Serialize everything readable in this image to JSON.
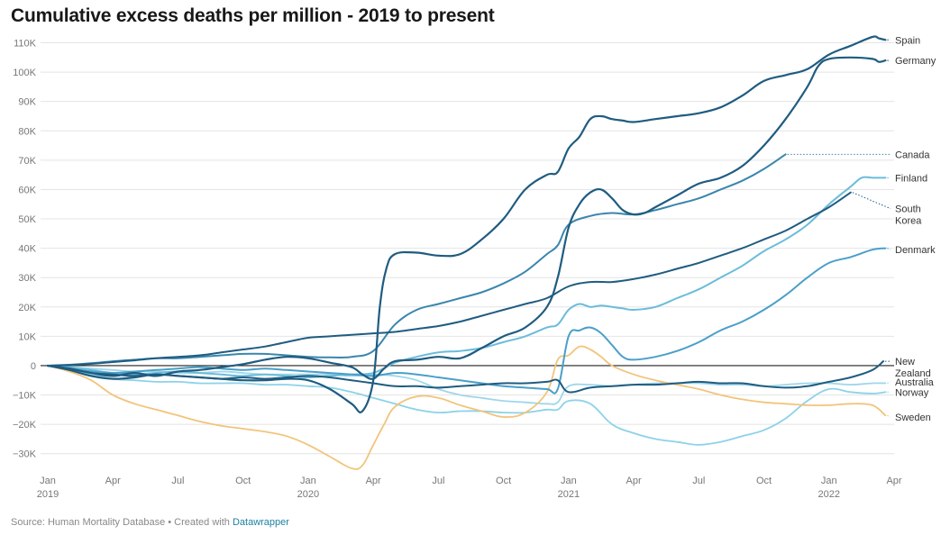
{
  "title": "Cumulative excess deaths per million - 2019 to present",
  "source": {
    "prefix": "Source: Human Mortality Database • Created with ",
    "link": "Datawrapper"
  },
  "chart_data": {
    "type": "line",
    "title": "Cumulative excess deaths per million - 2019 to present",
    "xlabel": "",
    "ylabel": "",
    "ylim": [
      -35000,
      112000
    ],
    "xlim": [
      0,
      39
    ],
    "x_unit": "months since Jan 2019",
    "y_ticks": [
      110000,
      100000,
      90000,
      80000,
      70000,
      60000,
      50000,
      40000,
      30000,
      20000,
      10000,
      0,
      -10000,
      -20000,
      -30000
    ],
    "y_tick_labels": [
      "110K",
      "100K",
      "90K",
      "80K",
      "70K",
      "60K",
      "50K",
      "40K",
      "30K",
      "20K",
      "10K",
      "0",
      "−10K",
      "−20K",
      "−30K"
    ],
    "x_ticks": [
      {
        "x": 0,
        "label": "Jan",
        "year": "2019"
      },
      {
        "x": 3,
        "label": "Apr"
      },
      {
        "x": 6,
        "label": "Jul"
      },
      {
        "x": 9,
        "label": "Oct"
      },
      {
        "x": 12,
        "label": "Jan",
        "year": "2020"
      },
      {
        "x": 15,
        "label": "Apr"
      },
      {
        "x": 18,
        "label": "Jul"
      },
      {
        "x": 21,
        "label": "Oct"
      },
      {
        "x": 24,
        "label": "Jan",
        "year": "2021"
      },
      {
        "x": 27,
        "label": "Apr"
      },
      {
        "x": 30,
        "label": "Jul"
      },
      {
        "x": 33,
        "label": "Oct"
      },
      {
        "x": 36,
        "label": "Jan",
        "year": "2022"
      },
      {
        "x": 39,
        "label": "Apr"
      }
    ],
    "grid": true,
    "series": [
      {
        "name": "Spain",
        "label_lines": [
          "Spain"
        ],
        "color": "#1f5c80",
        "width": 2.2,
        "label_y": 111000,
        "x": [
          0,
          1,
          2,
          3,
          4,
          5,
          6,
          7,
          8,
          9,
          10,
          11,
          12,
          13,
          14,
          14.5,
          15,
          15.3,
          15.6,
          16,
          17,
          18,
          19,
          20,
          21,
          22,
          23,
          23.5,
          24,
          24.5,
          25,
          25.5,
          26,
          26.5,
          27,
          28,
          29,
          30,
          31,
          32,
          33,
          34,
          35,
          36,
          37,
          38,
          38.3,
          38.6
        ],
        "y": [
          0,
          -1500,
          -3500,
          -4500,
          -4000,
          -3000,
          -3500,
          -4000,
          -4500,
          -5000,
          -5000,
          -4500,
          -5000,
          -8000,
          -13000,
          -15500,
          -5000,
          20000,
          33000,
          38000,
          38500,
          37500,
          38000,
          43000,
          50000,
          60000,
          65000,
          66000,
          74000,
          78000,
          84000,
          85000,
          84000,
          83500,
          83000,
          84000,
          85000,
          86000,
          88000,
          92000,
          97000,
          99000,
          101000,
          106000,
          109000,
          112000,
          111500,
          111000
        ]
      },
      {
        "name": "Germany",
        "label_lines": [
          "Germany"
        ],
        "color": "#1f5c80",
        "width": 2.2,
        "label_y": 104000,
        "x": [
          0,
          1,
          2,
          3,
          4,
          5,
          6,
          7,
          8,
          9,
          10,
          11,
          12,
          13,
          14,
          14.5,
          15,
          15.5,
          16,
          17,
          18,
          19,
          20,
          21,
          22,
          23,
          23.5,
          24,
          24.5,
          25,
          25.5,
          26,
          26.5,
          27,
          27.5,
          28,
          29,
          30,
          31,
          32,
          33,
          34,
          35,
          35.5,
          36,
          37,
          38,
          38.3,
          38.6
        ],
        "y": [
          0,
          -1000,
          -2500,
          -3500,
          -2500,
          -3500,
          -2000,
          -1500,
          -500,
          500,
          2000,
          3000,
          2500,
          1000,
          -500,
          -3000,
          -4500,
          -1000,
          1500,
          2000,
          3000,
          2500,
          6000,
          10000,
          13000,
          20000,
          30000,
          47000,
          55000,
          59000,
          60000,
          57000,
          53000,
          51500,
          52000,
          54000,
          58000,
          62000,
          64000,
          68000,
          75000,
          84000,
          95000,
          102000,
          104500,
          105000,
          104500,
          103500,
          104000
        ]
      },
      {
        "name": "Canada",
        "label_lines": [
          "Canada"
        ],
        "color": "#3a86ad",
        "width": 2.0,
        "label_y": 72000,
        "x": [
          0,
          1,
          2,
          3,
          4,
          5,
          6,
          7,
          8,
          9,
          10,
          11,
          12,
          13,
          14,
          15,
          16,
          17,
          18,
          19,
          20,
          21,
          22,
          23,
          23.5,
          24,
          25,
          26,
          27,
          28,
          29,
          30,
          31,
          32,
          33,
          34
        ],
        "y": [
          0,
          300,
          800,
          1500,
          2000,
          2500,
          2500,
          3000,
          3500,
          4000,
          4000,
          3500,
          3000,
          2800,
          3000,
          5000,
          14000,
          19000,
          21000,
          23000,
          25000,
          28000,
          32000,
          38000,
          41000,
          48000,
          51000,
          52000,
          51500,
          53000,
          55000,
          57000,
          60000,
          63000,
          67000,
          72000
        ]
      },
      {
        "name": "Finland",
        "label_lines": [
          "Finland"
        ],
        "color": "#6bbcdb",
        "width": 2.0,
        "label_y": 64000,
        "x": [
          0,
          1,
          2,
          3,
          4,
          5,
          6,
          7,
          8,
          9,
          10,
          11,
          12,
          13,
          14,
          15,
          16,
          17,
          18,
          19,
          20,
          21,
          22,
          23,
          23.5,
          24,
          24.5,
          25,
          25.5,
          26,
          26.5,
          27,
          28,
          29,
          30,
          31,
          32,
          33,
          34,
          35,
          36,
          37,
          37.5,
          38,
          38.3,
          38.6
        ],
        "y": [
          0,
          -500,
          -1500,
          -2500,
          -3000,
          -2500,
          -2000,
          -2500,
          -3000,
          -3500,
          -3000,
          -3500,
          -4000,
          -3500,
          -3000,
          -2500,
          1000,
          3000,
          4500,
          5000,
          6000,
          8000,
          10000,
          13000,
          14000,
          19000,
          21000,
          20000,
          20500,
          20000,
          19500,
          19000,
          20000,
          23000,
          26000,
          30000,
          34000,
          39000,
          43000,
          48000,
          55000,
          61000,
          64000,
          64000,
          64000,
          64000
        ]
      },
      {
        "name": "South Korea",
        "label_lines": [
          "South",
          "Korea"
        ],
        "color": "#1f5c80",
        "width": 2.0,
        "label_y": 53500,
        "x": [
          0,
          1,
          2,
          3,
          4,
          5,
          6,
          7,
          8,
          9,
          10,
          11,
          12,
          13,
          14,
          15,
          16,
          17,
          18,
          19,
          20,
          21,
          22,
          23,
          24,
          25,
          26,
          27,
          28,
          29,
          30,
          31,
          32,
          33,
          34,
          35,
          36,
          37
        ],
        "y": [
          0,
          200,
          600,
          1200,
          1800,
          2500,
          3000,
          3500,
          4500,
          5500,
          6500,
          8000,
          9500,
          10000,
          10500,
          11000,
          11500,
          12500,
          13500,
          15000,
          17000,
          19000,
          21000,
          23000,
          27000,
          28500,
          28500,
          29500,
          31000,
          33000,
          35000,
          37500,
          40000,
          43000,
          46000,
          50000,
          54000,
          59000
        ]
      },
      {
        "name": "Denmark",
        "label_lines": [
          "Denmark"
        ],
        "color": "#4a9fc9",
        "width": 2.0,
        "label_y": 39500,
        "x": [
          0,
          1,
          2,
          3,
          4,
          5,
          6,
          7,
          8,
          9,
          10,
          11,
          12,
          13,
          14,
          15,
          16,
          17,
          18,
          19,
          20,
          21,
          22,
          23,
          23.5,
          24,
          24.5,
          25,
          25.5,
          26,
          26.5,
          27,
          28,
          29,
          30,
          31,
          32,
          33,
          34,
          35,
          36,
          37,
          38,
          38.6
        ],
        "y": [
          0,
          -1000,
          -2000,
          -2500,
          -2000,
          -1500,
          -1000,
          -500,
          -1000,
          -1500,
          -1000,
          -1500,
          -2000,
          -2500,
          -3000,
          -3500,
          -2500,
          -3000,
          -4000,
          -5000,
          -6000,
          -7000,
          -7500,
          -8000,
          -8000,
          10000,
          12000,
          13000,
          11000,
          7000,
          3000,
          2000,
          3000,
          5000,
          8000,
          12000,
          15000,
          19000,
          24000,
          30000,
          35000,
          37000,
          39500,
          40000
        ]
      },
      {
        "name": "New Zealand",
        "label_lines": [
          "New",
          "Zealand"
        ],
        "color": "#1f5c80",
        "width": 2.0,
        "label_y": 1500,
        "x": [
          0,
          1,
          2,
          3,
          4,
          5,
          6,
          7,
          8,
          9,
          10,
          11,
          12,
          13,
          14,
          15,
          16,
          17,
          18,
          19,
          20,
          21,
          22,
          23,
          23.5,
          24,
          25,
          26,
          27,
          28,
          29,
          30,
          31,
          32,
          33,
          34,
          35,
          36,
          37,
          38,
          38.5
        ],
        "y": [
          0,
          -1000,
          -2500,
          -3000,
          -3500,
          -3000,
          -3500,
          -4000,
          -4500,
          -4000,
          -4500,
          -4000,
          -3500,
          -4000,
          -5000,
          -6000,
          -7000,
          -7000,
          -7500,
          -7000,
          -6500,
          -6000,
          -6000,
          -5500,
          -5000,
          -9000,
          -7500,
          -7000,
          -6500,
          -6500,
          -6000,
          -5500,
          -6000,
          -6000,
          -7000,
          -7500,
          -7000,
          -5500,
          -4000,
          -1500,
          1500
        ]
      },
      {
        "name": "Australia",
        "label_lines": [
          "Australia"
        ],
        "color": "#9fd6ea",
        "width": 1.8,
        "label_y": -5500,
        "x": [
          0,
          1,
          2,
          3,
          4,
          5,
          6,
          7,
          8,
          9,
          10,
          11,
          12,
          13,
          14,
          15,
          16,
          17,
          18,
          19,
          20,
          21,
          22,
          23,
          23.5,
          24,
          25,
          26,
          27,
          28,
          29,
          30,
          31,
          32,
          33,
          34,
          35,
          36,
          37,
          38,
          38.6
        ],
        "y": [
          0,
          -500,
          -1000,
          -1500,
          -2000,
          -2000,
          -2500,
          -2500,
          -2000,
          -2500,
          -3000,
          -3000,
          -3000,
          -3000,
          -3500,
          -3000,
          -3500,
          -5000,
          -8000,
          -10000,
          -11000,
          -12000,
          -12500,
          -13000,
          -12500,
          -7000,
          -6500,
          -7000,
          -6500,
          -6000,
          -6000,
          -6000,
          -6500,
          -6500,
          -7000,
          -6500,
          -6000,
          -6000,
          -6500,
          -6000,
          -6000
        ]
      },
      {
        "name": "Norway",
        "label_lines": [
          "Norway"
        ],
        "color": "#8dd2e8",
        "width": 1.8,
        "label_y": -9000,
        "x": [
          0,
          1,
          2,
          3,
          4,
          5,
          6,
          7,
          8,
          9,
          10,
          11,
          12,
          13,
          14,
          15,
          16,
          17,
          18,
          19,
          20,
          21,
          22,
          23,
          23.5,
          24,
          25,
          26,
          27,
          28,
          29,
          30,
          31,
          32,
          33,
          34,
          35,
          36,
          37,
          38,
          38.6
        ],
        "y": [
          0,
          -1500,
          -3000,
          -4500,
          -5000,
          -5500,
          -5500,
          -6000,
          -6000,
          -6000,
          -6500,
          -6500,
          -7000,
          -7500,
          -9000,
          -11000,
          -13000,
          -15000,
          -16000,
          -15500,
          -15500,
          -16000,
          -16000,
          -15000,
          -15000,
          -12000,
          -13000,
          -20000,
          -23000,
          -25000,
          -26000,
          -27000,
          -26000,
          -24000,
          -22000,
          -18000,
          -12000,
          -8000,
          -9000,
          -9500,
          -9000
        ]
      },
      {
        "name": "Sweden",
        "label_lines": [
          "Sweden"
        ],
        "color": "#f2c47a",
        "width": 1.8,
        "label_y": -17500,
        "x": [
          0,
          1,
          2,
          3,
          4,
          5,
          6,
          7,
          8,
          9,
          10,
          11,
          12,
          13,
          14,
          14.5,
          15,
          15.5,
          16,
          17,
          18,
          19,
          20,
          21,
          22,
          23,
          23.5,
          24,
          24.5,
          25,
          25.5,
          26,
          27,
          28,
          29,
          30,
          31,
          32,
          33,
          34,
          35,
          36,
          37,
          38,
          38.6
        ],
        "y": [
          0,
          -2000,
          -5000,
          -10000,
          -13000,
          -15000,
          -17000,
          -19000,
          -20500,
          -21500,
          -22500,
          -24000,
          -27000,
          -31000,
          -35000,
          -34000,
          -27000,
          -20000,
          -14000,
          -10500,
          -11000,
          -13500,
          -15500,
          -17500,
          -16000,
          -9000,
          2000,
          3500,
          6500,
          5500,
          3000,
          0,
          -3000,
          -5000,
          -6500,
          -8000,
          -10000,
          -11500,
          -12500,
          -13000,
          -13500,
          -13500,
          -13000,
          -13500,
          -17000
        ]
      }
    ]
  }
}
